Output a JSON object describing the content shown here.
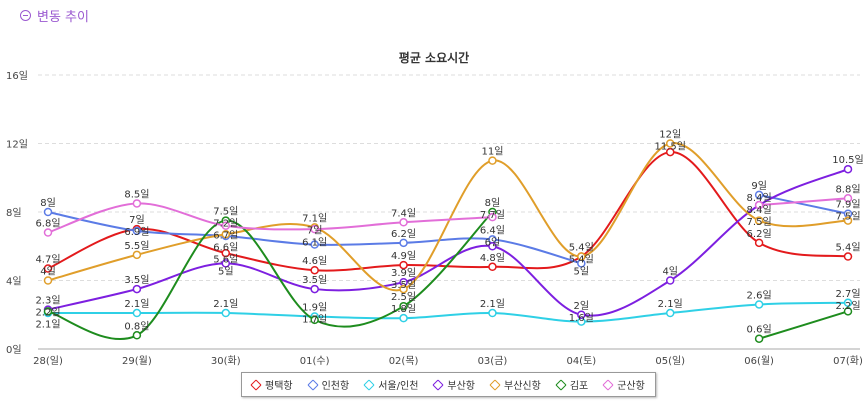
{
  "header": {
    "title": "변동 추이",
    "icon": "minus-circle-icon"
  },
  "chart_data": {
    "type": "line",
    "title": "평균 소요시간",
    "categories": [
      "28(일)",
      "29(월)",
      "30(화)",
      "01(수)",
      "02(목)",
      "03(금)",
      "04(토)",
      "05(일)",
      "06(월)",
      "07(화)"
    ],
    "ylim": [
      0,
      16
    ],
    "yticks": [
      0,
      4,
      8,
      12,
      16
    ],
    "ytick_labels": [
      "0일",
      "4일",
      "8일",
      "12일",
      "16일"
    ],
    "unit": "일",
    "grid": true,
    "smooth": true,
    "legend_position": "bottom",
    "series": [
      {
        "name": "평택항",
        "color": "#e31a1c",
        "values": [
          4.7,
          7.0,
          5.6,
          4.6,
          4.9,
          4.8,
          5.4,
          11.5,
          6.2,
          5.4
        ]
      },
      {
        "name": "인천항",
        "color": "#5b7be6",
        "values": [
          8,
          6.9,
          6.6,
          6.1,
          6.2,
          6.4,
          5,
          null,
          9,
          7.9
        ]
      },
      {
        "name": "서울/인천",
        "color": "#2fd0e6",
        "values": [
          2.1,
          2.1,
          2.1,
          1.9,
          1.8,
          2.1,
          1.6,
          2.1,
          2.6,
          2.7
        ]
      },
      {
        "name": "부산항",
        "color": "#7d1fe0",
        "values": [
          2.3,
          3.5,
          5,
          3.5,
          3.9,
          6,
          2,
          4,
          8.4,
          10.5
        ]
      },
      {
        "name": "부산신항",
        "color": "#e09e2a",
        "values": [
          4,
          5.5,
          6.7,
          7.1,
          3.5,
          11,
          5.4,
          12,
          7.5,
          7.5
        ]
      },
      {
        "name": "김포",
        "color": "#1e8c1e",
        "values": [
          2.2,
          0.8,
          7.5,
          1.7,
          2.5,
          8,
          null,
          null,
          0.6,
          2.2
        ]
      },
      {
        "name": "군산항",
        "color": "#e26ed8",
        "values": [
          6.8,
          8.5,
          7.2,
          7,
          7.4,
          7.7,
          null,
          null,
          8.4,
          8.8
        ]
      }
    ]
  }
}
